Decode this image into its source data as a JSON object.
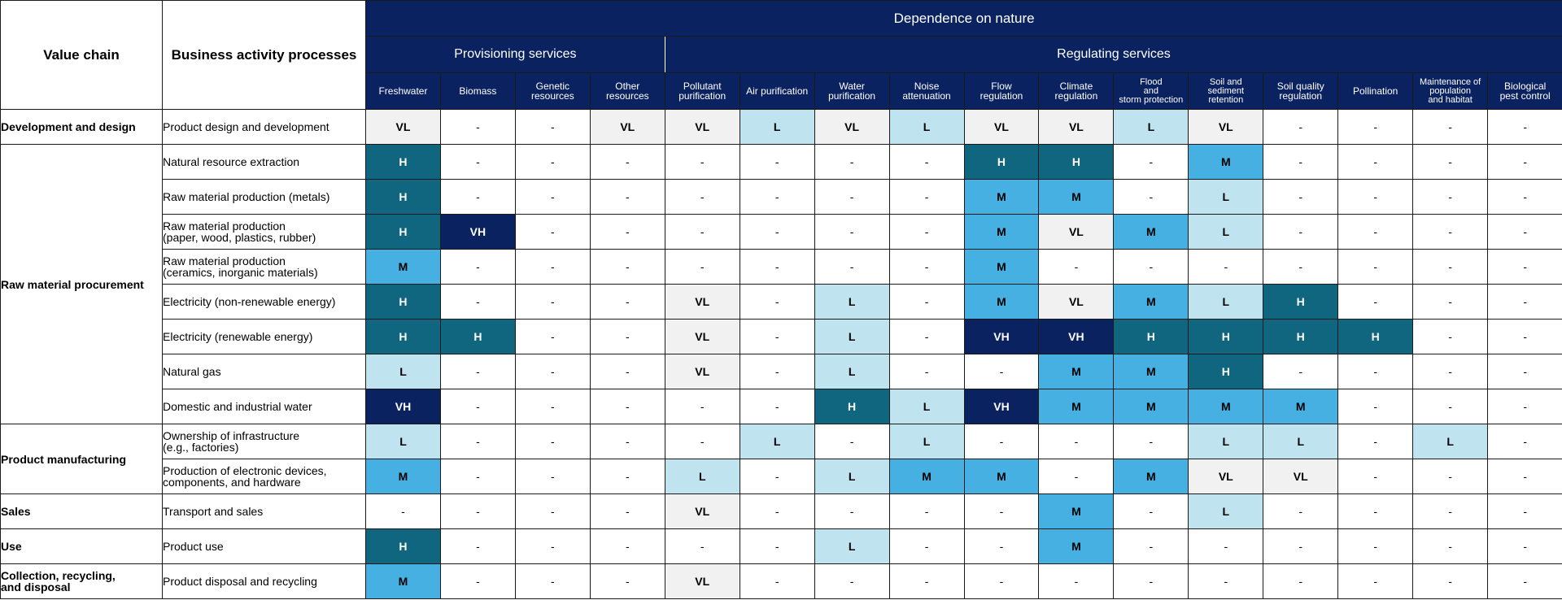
{
  "header": {
    "value_chain": "Value chain",
    "business_activity": "Business activity processes",
    "dependence": "Dependence on nature",
    "provisioning": "Provisioning services",
    "regulating": "Regulating services"
  },
  "columns": [
    "Freshwater",
    "Biomass",
    "Genetic\nresources",
    "Other\nresources",
    "Pollutant\npurification",
    "Air purification",
    "Water\npurification",
    "Noise\nattenuation",
    "Flow\nregulation",
    "Climate\nregulation",
    "Flood\nand\nstorm protection",
    "Soil and\nsediment\nretention",
    "Soil quality\nregulation",
    "Pollination",
    "Maintenance of\npopulation\nand habitat",
    "Biological\npest control"
  ],
  "groups": [
    {
      "name": "Development and design",
      "rows": [
        {
          "activity": "Product design and development",
          "values": [
            "VL",
            "-",
            "-",
            "VL",
            "VL",
            "L",
            "VL",
            "L",
            "VL",
            "VL",
            "L",
            "VL",
            "-",
            "-",
            "-",
            "-"
          ]
        }
      ]
    },
    {
      "name": "Raw material procurement",
      "rows": [
        {
          "activity": "Natural resource extraction",
          "values": [
            "H",
            "-",
            "-",
            "-",
            "-",
            "-",
            "-",
            "-",
            "H",
            "H",
            "-",
            "M",
            "-",
            "-",
            "-",
            "-"
          ]
        },
        {
          "activity": "Raw material production (metals)",
          "values": [
            "H",
            "-",
            "-",
            "-",
            "-",
            "-",
            "-",
            "-",
            "M",
            "M",
            "-",
            "L",
            "-",
            "-",
            "-",
            "-"
          ]
        },
        {
          "activity": "Raw material production\n(paper, wood, plastics, rubber)",
          "values": [
            "H",
            "VH",
            "-",
            "-",
            "-",
            "-",
            "-",
            "-",
            "M",
            "VL",
            "M",
            "L",
            "-",
            "-",
            "-",
            "-"
          ]
        },
        {
          "activity": "Raw material production\n(ceramics, inorganic materials)",
          "values": [
            "M",
            "-",
            "-",
            "-",
            "-",
            "-",
            "-",
            "-",
            "M",
            "-",
            "-",
            "-",
            "-",
            "-",
            "-",
            "-"
          ]
        },
        {
          "activity": "Electricity (non-renewable energy)",
          "values": [
            "H",
            "-",
            "-",
            "-",
            "VL",
            "-",
            "L",
            "-",
            "M",
            "VL",
            "M",
            "L",
            "H",
            "-",
            "-",
            "-"
          ]
        },
        {
          "activity": "Electricity (renewable energy)",
          "values": [
            "H",
            "H",
            "-",
            "-",
            "VL",
            "-",
            "L",
            "-",
            "VH",
            "VH",
            "H",
            "H",
            "H",
            "H",
            "-",
            "-"
          ]
        },
        {
          "activity": "Natural gas",
          "values": [
            "L",
            "-",
            "-",
            "-",
            "VL",
            "-",
            "L",
            "-",
            "-",
            "M",
            "M",
            "H",
            "-",
            "-",
            "-",
            "-"
          ]
        },
        {
          "activity": "Domestic and industrial water",
          "values": [
            "VH",
            "-",
            "-",
            "-",
            "-",
            "-",
            "H",
            "L",
            "VH",
            "M",
            "M",
            "M",
            "M",
            "-",
            "-",
            "-"
          ]
        }
      ]
    },
    {
      "name": "Product manufacturing",
      "rows": [
        {
          "activity": "Ownership of infrastructure\n(e.g., factories)",
          "values": [
            "L",
            "-",
            "-",
            "-",
            "-",
            "L",
            "-",
            "L",
            "-",
            "-",
            "-",
            "L",
            "L",
            "-",
            "L",
            "-"
          ]
        },
        {
          "activity": "Production of electronic devices,\ncomponents, and hardware",
          "values": [
            "M",
            "-",
            "-",
            "-",
            "L",
            "-",
            "L",
            "M",
            "M",
            "-",
            "M",
            "VL",
            "VL",
            "-",
            "-",
            "-"
          ]
        }
      ]
    },
    {
      "name": "Sales",
      "rows": [
        {
          "activity": "Transport and sales",
          "values": [
            "-",
            "-",
            "-",
            "-",
            "VL",
            "-",
            "-",
            "-",
            "-",
            "M",
            "-",
            "L",
            "-",
            "-",
            "-",
            "-"
          ]
        }
      ]
    },
    {
      "name": "Use",
      "rows": [
        {
          "activity": "Product use",
          "values": [
            "H",
            "-",
            "-",
            "-",
            "-",
            "-",
            "L",
            "-",
            "-",
            "M",
            "-",
            "-",
            "-",
            "-",
            "-",
            "-"
          ]
        }
      ]
    },
    {
      "name": "Collection, recycling,\nand disposal",
      "rows": [
        {
          "activity": "Product disposal and recycling",
          "values": [
            "M",
            "-",
            "-",
            "-",
            "VL",
            "-",
            "-",
            "-",
            "-",
            "-",
            "-",
            "-",
            "-",
            "-",
            "-",
            "-"
          ]
        }
      ]
    }
  ],
  "colors": {
    "VL": "#f2f1f2",
    "L": "#bfe3ef",
    "M": "#45b0e1",
    "H": "#0f667e",
    "VH": "#0b2260",
    "header": "#0b2260"
  }
}
